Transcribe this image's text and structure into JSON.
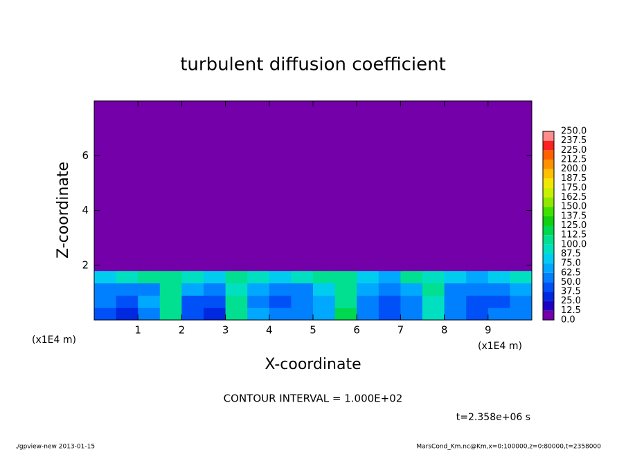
{
  "chart_data": {
    "type": "heatmap",
    "title": "turbulent diffusion coefficient",
    "xlabel": "X-coordinate",
    "ylabel": "Z-coordinate",
    "xunit": "(x1E4 m)",
    "yunit": "(x1E4 m)",
    "xlim": [
      0,
      10
    ],
    "ylim": [
      0,
      8
    ],
    "xticks": [
      1,
      2,
      3,
      4,
      5,
      6,
      7,
      8,
      9
    ],
    "yticks": [
      2,
      4,
      6
    ],
    "x_edges": [
      0,
      0.5,
      1,
      1.5,
      2,
      2.5,
      3,
      3.5,
      4,
      4.5,
      5,
      5.5,
      6,
      6.5,
      7,
      7.5,
      8,
      8.5,
      9,
      9.5,
      10
    ],
    "z_edges": [
      0,
      0.45,
      0.9,
      1.35,
      1.8,
      8
    ],
    "values": [
      [
        40,
        30,
        60,
        110,
        40,
        30,
        110,
        70,
        50,
        60,
        70,
        120,
        50,
        40,
        60,
        90,
        60,
        40,
        50,
        60
      ],
      [
        50,
        40,
        70,
        100,
        40,
        40,
        100,
        60,
        40,
        50,
        70,
        110,
        60,
        40,
        60,
        90,
        50,
        40,
        40,
        60
      ],
      [
        60,
        50,
        60,
        100,
        70,
        60,
        90,
        70,
        50,
        60,
        80,
        100,
        70,
        50,
        70,
        100,
        60,
        50,
        60,
        70
      ],
      [
        80,
        90,
        100,
        100,
        90,
        80,
        100,
        90,
        80,
        90,
        100,
        100,
        80,
        70,
        100,
        90,
        80,
        70,
        80,
        90
      ],
      [
        0,
        0,
        0,
        0,
        0,
        0,
        0,
        0,
        0,
        0,
        0,
        0,
        0,
        0,
        0,
        0,
        0,
        0,
        0,
        0
      ]
    ],
    "levels": [
      {
        "value": 0,
        "label": "0.0"
      },
      12.5,
      {
        "value": 25,
        "label": "25.0"
      },
      37.5,
      {
        "value": 50,
        "label": "50.0"
      },
      62.5,
      {
        "value": 75,
        "label": "75.0"
      },
      87.5,
      {
        "value": 100,
        "label": "100.0"
      },
      112.5,
      {
        "value": 125,
        "label": "125.0"
      },
      137.5,
      {
        "value": 150,
        "label": "150.0"
      },
      162.5,
      {
        "value": 175,
        "label": "175.0"
      },
      187.5,
      {
        "value": 200,
        "label": "200.0"
      },
      212.5,
      {
        "value": 225,
        "label": "225.0"
      },
      237.5,
      {
        "value": 250,
        "label": "250.0"
      }
    ],
    "colors": [
      "#7300a8",
      "#1e00c4",
      "#0028e0",
      "#0050f8",
      "#0080ff",
      "#00a8ff",
      "#00ccf0",
      "#00e0c0",
      "#00e090",
      "#00d850",
      "#10d010",
      "#40e000",
      "#90e800",
      "#c8f000",
      "#f0e800",
      "#ffc000",
      "#ff9000",
      "#ff6000",
      "#ff2020",
      "#ff8c8c"
    ],
    "annotation": "CONTOUR INTERVAL = 1.000E+02",
    "time_label": "t=2.358e+06 s",
    "footer_left": "./gpview-new  2013-01-15",
    "footer_right": "MarsCond_Km.nc@Km,x=0:100000,z=0:80000,t=2358000"
  }
}
